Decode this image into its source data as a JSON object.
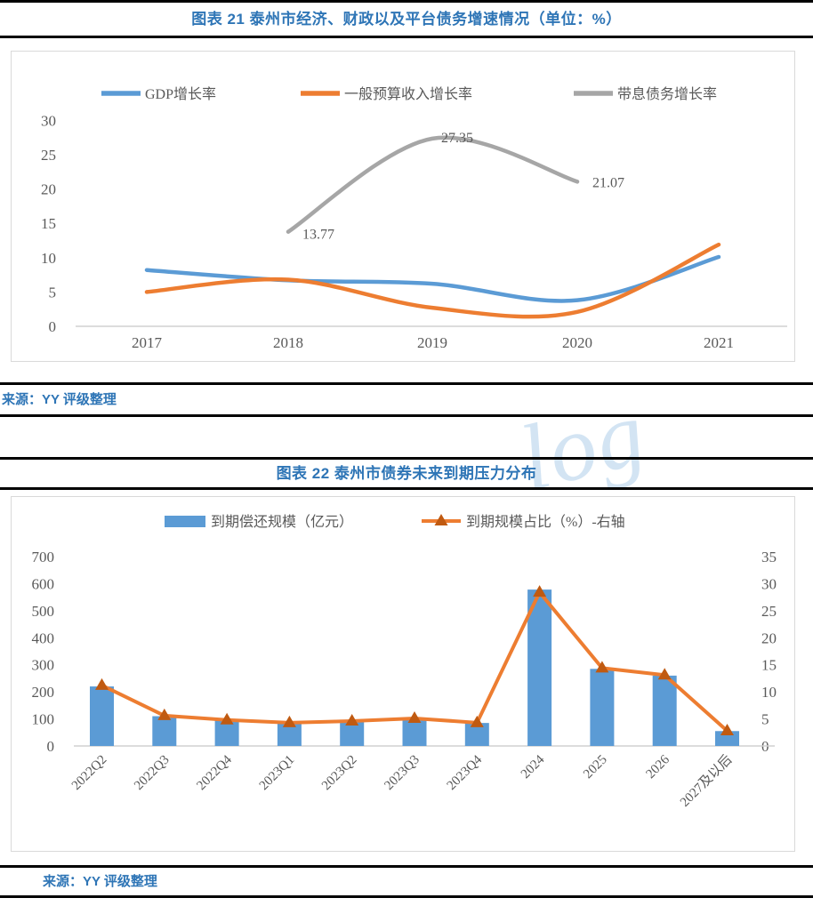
{
  "figures": {
    "fig21": {
      "title": "图表 21 泰州市经济、财政以及平台债务增速情况（单位：%）",
      "source_label": "来源：YY 评级整理"
    },
    "fig22": {
      "title": "图表 22 泰州市债券未来到期压力分布",
      "source_label": "来源：YY 评级整理"
    }
  },
  "watermark_text": "log",
  "colors": {
    "title_blue": "#2E75B6",
    "excel_blue": "#5B9BD5",
    "excel_orange": "#ED7D31",
    "excel_gray": "#A6A6A6",
    "marker_dark_orange": "#C05A11",
    "axis_text": "#595959",
    "axis_line": "#D0D0D0",
    "data_label": "#404040",
    "watermark_blue": "#BDD7EE"
  },
  "chart_data": [
    {
      "type": "line",
      "title": "图表 21 泰州市经济、财政以及平台债务增速情况（单位：%）",
      "x": [
        "2017",
        "2018",
        "2019",
        "2020",
        "2021"
      ],
      "series": [
        {
          "name": "GDP增长率",
          "color": "#5B9BD5",
          "values": [
            8.2,
            6.7,
            6.2,
            3.8,
            10.1
          ]
        },
        {
          "name": "一般预算收入增长率",
          "color": "#ED7D31",
          "values": [
            5.0,
            6.8,
            2.7,
            2.1,
            11.9
          ]
        },
        {
          "name": "带息债务增长率",
          "color": "#A6A6A6",
          "values": [
            null,
            13.77,
            27.35,
            21.07,
            null
          ],
          "data_labels": [
            null,
            "13.77",
            "27.35",
            "21.07",
            null
          ]
        }
      ],
      "ylim": [
        0,
        30
      ],
      "yticks": [
        0,
        5,
        10,
        15,
        20,
        25,
        30
      ],
      "legend_position": "top",
      "grid": false,
      "smoothed_lines": true
    },
    {
      "type": "bar+line",
      "title": "图表 22 泰州市债券未来到期压力分布",
      "categories": [
        "2022Q2",
        "2022Q3",
        "2022Q4",
        "2023Q1",
        "2023Q2",
        "2023Q3",
        "2023Q4",
        "2024",
        "2025",
        "2026",
        "2027及以后"
      ],
      "series": [
        {
          "name": "到期偿还规模（亿元）",
          "type": "bar",
          "axis": "left",
          "color": "#5B9BD5",
          "values": [
            220,
            110,
            95,
            85,
            90,
            100,
            85,
            578,
            285,
            260,
            55
          ]
        },
        {
          "name": "到期规模占比（%）-右轴",
          "type": "line",
          "axis": "right",
          "color": "#ED7D31",
          "marker": "triangle",
          "marker_color": "#C05A11",
          "values": [
            11.2,
            5.6,
            4.8,
            4.3,
            4.6,
            5.1,
            4.3,
            28.4,
            14.4,
            13.1,
            2.8
          ]
        }
      ],
      "ylim_left": [
        0,
        700
      ],
      "yticks_left": [
        0,
        100,
        200,
        300,
        400,
        500,
        600,
        700
      ],
      "ylim_right": [
        0,
        35
      ],
      "yticks_right": [
        0,
        5,
        10,
        15,
        20,
        25,
        30,
        35
      ],
      "legend_position": "top",
      "grid": false,
      "x_label_rotation_deg": 45
    }
  ]
}
